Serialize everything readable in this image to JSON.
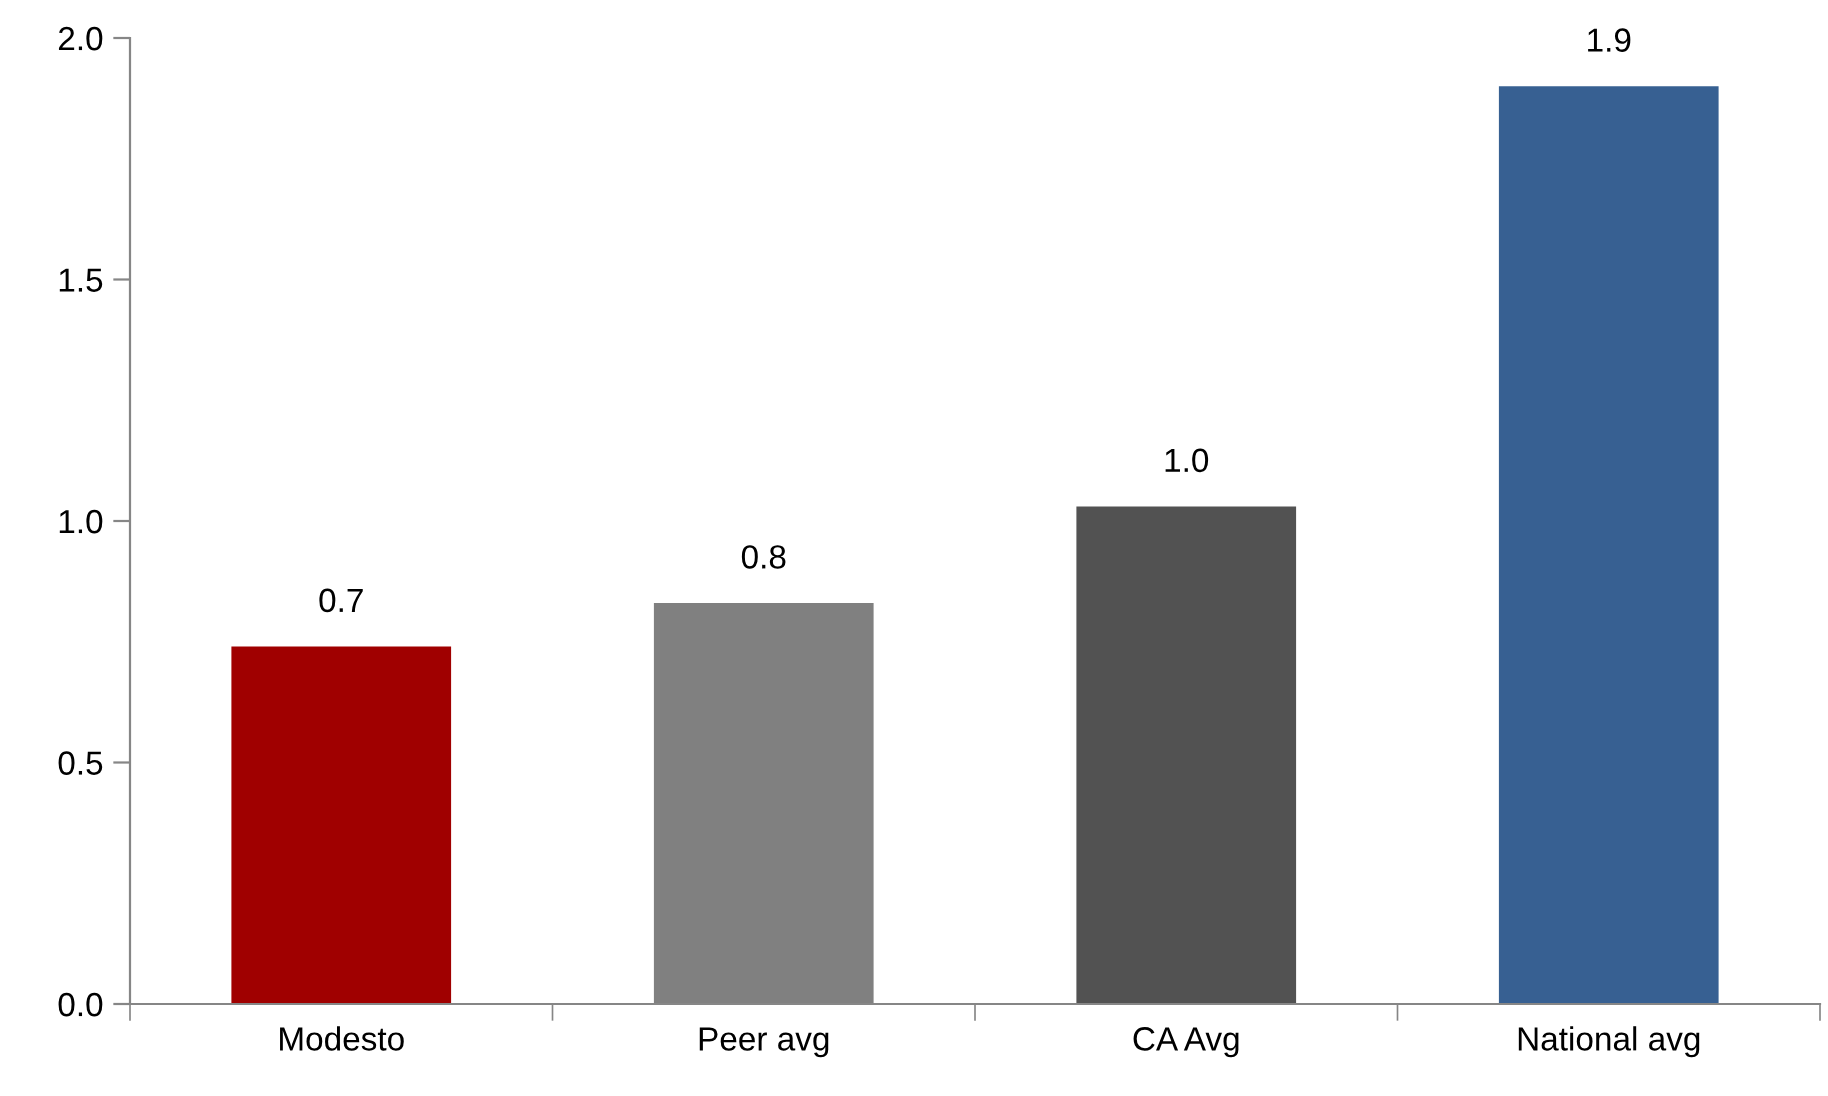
{
  "chart_data": {
    "type": "bar",
    "categories": [
      "Modesto",
      "Peer avg",
      "CA Avg",
      "National avg"
    ],
    "values": [
      0.74,
      0.83,
      1.03,
      1.9
    ],
    "value_labels": [
      "0.7",
      "0.8",
      "1.0",
      "1.9"
    ],
    "colors": [
      "#a00000",
      "#808080",
      "#525252",
      "#376092"
    ],
    "ylim": [
      0,
      2
    ],
    "yticks": [
      {
        "value": 0,
        "label": "0.0"
      },
      {
        "value": 0.5,
        "label": "0.5"
      },
      {
        "value": 1,
        "label": "1.0"
      },
      {
        "value": 1.5,
        "label": "1.5"
      },
      {
        "value": 2,
        "label": "2.0"
      }
    ],
    "grid": false,
    "legend": false
  }
}
